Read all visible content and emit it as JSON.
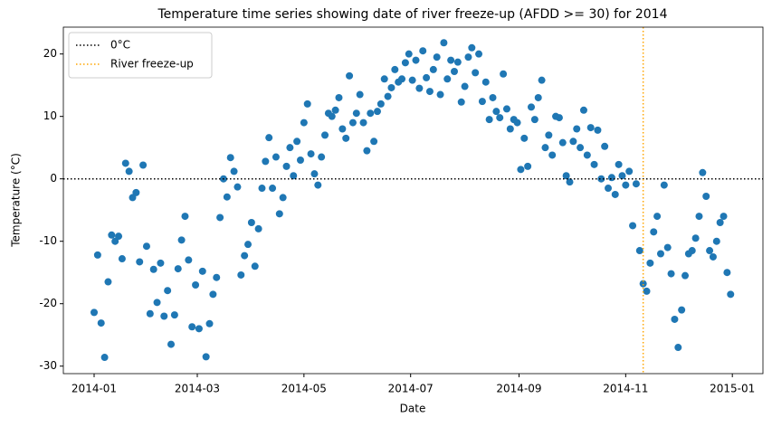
{
  "chart_data": {
    "type": "scatter",
    "title": "Temperature time series showing date of river freeze-up (AFDD >= 30) for 2014",
    "xlabel": "Date",
    "ylabel": "Temperature (°C)",
    "color": "#1f77b4",
    "x": [
      0,
      2,
      4,
      6,
      8,
      10,
      12,
      14,
      16,
      18,
      20,
      22,
      24,
      26,
      28,
      30,
      32,
      34,
      36,
      38,
      40,
      42,
      44,
      46,
      48,
      50,
      52,
      54,
      56,
      58,
      60,
      62,
      64,
      66,
      68,
      70,
      72,
      74,
      76,
      78,
      80,
      82,
      84,
      86,
      88,
      90,
      92,
      94,
      96,
      98,
      100,
      102,
      104,
      106,
      108,
      110,
      112,
      114,
      116,
      118,
      120,
      122,
      124,
      126,
      128,
      130,
      132,
      134,
      136,
      138,
      140,
      142,
      144,
      146,
      148,
      150,
      152,
      154,
      156,
      158,
      160,
      162,
      164,
      166,
      168,
      170,
      172,
      174,
      176,
      178,
      180,
      182,
      184,
      186,
      188,
      190,
      192,
      194,
      196,
      198,
      200,
      202,
      204,
      206,
      208,
      210,
      212,
      214,
      216,
      218,
      220,
      222,
      224,
      226,
      228,
      230,
      232,
      234,
      236,
      238,
      240,
      242,
      244,
      246,
      248,
      250,
      252,
      254,
      256,
      258,
      260,
      262,
      264,
      266,
      268,
      270,
      272,
      274,
      276,
      278,
      280,
      282,
      284,
      286,
      288,
      290,
      292,
      294,
      296,
      298,
      300,
      302,
      304,
      306,
      308,
      310,
      312,
      314,
      316,
      318,
      320,
      322,
      324,
      326,
      328,
      330,
      332,
      334,
      336,
      338,
      340,
      342,
      344,
      346,
      348,
      350,
      352,
      354,
      356,
      358,
      360,
      362,
      364
    ],
    "values": [
      -21.4,
      -12.2,
      -23.1,
      -28.6,
      -16.5,
      -9,
      -10,
      -9.2,
      -12.8,
      2.5,
      1.2,
      -3,
      -2.2,
      -13.3,
      2.2,
      -10.8,
      -21.6,
      -14.5,
      -19.8,
      -13.5,
      -22,
      -17.9,
      -26.5,
      -21.8,
      -14.4,
      -9.8,
      -6,
      -13,
      -23.7,
      -17,
      -24,
      -14.8,
      -28.5,
      -23.2,
      -18.5,
      -15.8,
      -6.2,
      0,
      -2.9,
      3.4,
      1.2,
      -1.3,
      -15.4,
      -12.3,
      -10.5,
      -7,
      -14,
      -8,
      -1.5,
      2.8,
      6.6,
      -1.5,
      3.5,
      -5.6,
      -3,
      2,
      5,
      0.5,
      6,
      3,
      9,
      12,
      4,
      0.8,
      -1,
      3.5,
      7,
      10.5,
      10,
      11,
      13,
      8,
      6.5,
      16.5,
      9,
      10.5,
      13.5,
      9,
      4.5,
      10.5,
      6,
      10.8,
      12,
      16,
      13.2,
      14.6,
      17.5,
      15.5,
      16,
      18.6,
      20,
      15.8,
      19,
      14.5,
      20.5,
      16.2,
      14,
      17.5,
      19.5,
      13.5,
      21.8,
      16,
      19,
      17.2,
      18.7,
      12.3,
      14.8,
      19.5,
      21,
      17,
      20,
      12.4,
      15.5,
      9.5,
      13,
      10.8,
      9.8,
      16.8,
      11.2,
      8,
      9.5,
      9,
      1.5,
      6.5,
      2,
      11.5,
      9.5,
      13,
      15.8,
      5,
      7,
      3.8,
      10,
      9.8,
      5.8,
      0.5,
      -0.5,
      6,
      8,
      5,
      11,
      3.8,
      8.2,
      2.3,
      7.8,
      0,
      5.2,
      -1.5,
      0.2,
      -2.5,
      2.3,
      0.5,
      -1,
      1.2,
      -7.5,
      -0.8,
      -11.5,
      -16.8,
      -18,
      -13.5,
      -8.5,
      -6,
      -12,
      -1,
      -11,
      -15.2,
      -22.5,
      -27,
      -21,
      -15.5,
      -12,
      -11.5,
      -9.5,
      -6,
      1,
      -2.8,
      -11.5,
      -12.5,
      -10,
      -7,
      -6,
      -15,
      -18.5
    ],
    "xlim": [
      -17.6,
      382.5
    ],
    "ylim": [
      -31.2,
      24.3
    ],
    "xticks": [
      {
        "value": 0,
        "label": "2014-01"
      },
      {
        "value": 59,
        "label": "2014-03"
      },
      {
        "value": 120,
        "label": "2014-05"
      },
      {
        "value": 181,
        "label": "2014-07"
      },
      {
        "value": 243,
        "label": "2014-09"
      },
      {
        "value": 304,
        "label": "2014-11"
      },
      {
        "value": 365,
        "label": "2015-01"
      }
    ],
    "yticks": [
      -30,
      -20,
      -10,
      0,
      10,
      20
    ],
    "reference_lines": [
      {
        "name": "0°C",
        "orientation": "horizontal",
        "value": 0,
        "color": "#000000"
      },
      {
        "name": "River freeze-up",
        "orientation": "vertical",
        "value": 314,
        "color": "#ffa500"
      }
    ],
    "legend": "upper left"
  }
}
